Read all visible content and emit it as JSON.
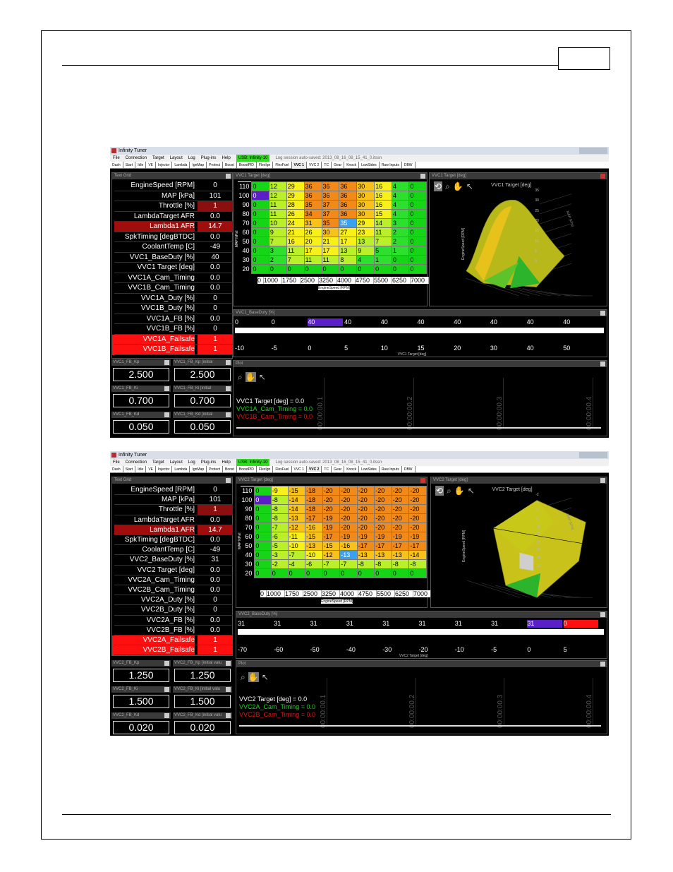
{
  "app_title": "Infinity Tuner",
  "menu": [
    "File",
    "Connection",
    "Target",
    "Layout",
    "Log",
    "Plug-ins",
    "Help"
  ],
  "connection": "USB: Infinity-10",
  "tabs": [
    "Dash",
    "Start",
    "Idle",
    "VE",
    "Injector",
    "Lambda",
    "IgnMap",
    "Protect",
    "Boost",
    "BoostPID",
    "FlexIgn",
    "FlexFuel",
    "VVC 1",
    "VVC 2",
    "TC",
    "Gear",
    "Knock",
    "LowSides",
    "Raw Inputs",
    "DBW"
  ],
  "shots": [
    {
      "log_msg": "Log session auto-saved: 2013_08_16_08_15_41_0.itssn",
      "active_tab": "VVC 1",
      "text_grid": {
        "title": "Text Grid",
        "rows": [
          {
            "label": "EngineSpeed [RPM]",
            "value": "0",
            "style": ""
          },
          {
            "label": "MAP [kPa]",
            "value": "101",
            "style": ""
          },
          {
            "label": "Throttle [%]",
            "value": "1",
            "style": "red"
          },
          {
            "label": "LambdaTarget AFR",
            "value": "0.0",
            "style": ""
          },
          {
            "label": "Lambda1 AFR",
            "value": "14.7",
            "style": "red"
          },
          {
            "label": "SpkTiming [degBTDC]",
            "value": "0.0",
            "style": ""
          },
          {
            "label": "CoolantTemp [C]",
            "value": "-49",
            "style": ""
          },
          {
            "label": "VVC1_BaseDuty [%]",
            "value": "40",
            "style": ""
          },
          {
            "label": "VVC1 Target [deg]",
            "value": "0.0",
            "style": ""
          },
          {
            "label": "VVC1A_Cam_Timing",
            "value": "0.0",
            "style": ""
          },
          {
            "label": "VVC1B_Cam_Timing",
            "value": "0.0",
            "style": ""
          },
          {
            "label": "VVC1A_Duty [%]",
            "value": "0",
            "style": ""
          },
          {
            "label": "VVC1B_Duty [%]",
            "value": "0",
            "style": ""
          },
          {
            "label": "VVC1A_FB [%]",
            "value": "0.0",
            "style": ""
          },
          {
            "label": "VVC1B_FB [%]",
            "value": "0",
            "style": ""
          },
          {
            "label": "VVC1A_Failsafe",
            "value": "1",
            "style": "bright"
          },
          {
            "label": "VVC1B_Failsafe",
            "value": "1",
            "style": "bright"
          }
        ]
      },
      "gains": [
        {
          "title": "VVC1_FB_Kp",
          "value": "2.500"
        },
        {
          "title": "VVC1_FB_Kp [initial",
          "value": "2.500"
        },
        {
          "title": "VVC1_FB_Ki",
          "value": "0.700"
        },
        {
          "title": "VVC1_FB_Ki [initial",
          "value": "0.700"
        },
        {
          "title": "VVC1_FB_Kd",
          "value": "0.050"
        },
        {
          "title": "VVC1_FB_Kd [initial",
          "value": "0.050"
        }
      ],
      "table": {
        "title": "VVC1 Target [deg]",
        "y_label": "MAP [kPa]",
        "x_label": "EngineSpeed [RPM]",
        "rows": [
          "110",
          "100",
          "90",
          "80",
          "70",
          "60",
          "50",
          "40",
          "30",
          "20"
        ],
        "cols": [
          "0",
          "1000",
          "1750",
          "2500",
          "3250",
          "4000",
          "4750",
          "5500",
          "6250",
          "7000"
        ],
        "cells": [
          [
            "0",
            "12",
            "29",
            "36",
            "36",
            "36",
            "30",
            "16",
            "4",
            "0"
          ],
          [
            "0",
            "12",
            "29",
            "36",
            "36",
            "36",
            "30",
            "16",
            "4",
            "0"
          ],
          [
            "0",
            "11",
            "28",
            "35",
            "37",
            "36",
            "30",
            "16",
            "4",
            "0"
          ],
          [
            "0",
            "11",
            "26",
            "34",
            "37",
            "36",
            "30",
            "15",
            "4",
            "0"
          ],
          [
            "0",
            "10",
            "24",
            "31",
            "35",
            "35",
            "29",
            "14",
            "3",
            "0"
          ],
          [
            "0",
            "9",
            "21",
            "26",
            "30",
            "27",
            "23",
            "11",
            "2",
            "0"
          ],
          [
            "0",
            "7",
            "16",
            "20",
            "21",
            "17",
            "13",
            "7",
            "2",
            "0"
          ],
          [
            "0",
            "3",
            "11",
            "17",
            "17",
            "13",
            "9",
            "5",
            "1",
            "0"
          ],
          [
            "0",
            "2",
            "7",
            "11",
            "11",
            "8",
            "4",
            "1",
            "0",
            "0"
          ],
          [
            "0",
            "0",
            "0",
            "0",
            "0",
            "0",
            "0",
            "0",
            "0",
            "0"
          ]
        ]
      },
      "surface": {
        "title": "VVC1 Target [deg]",
        "z_title": "VVC1 Target [deg]",
        "axis_rpm": "EngineSpeed [RPM]",
        "axis_map": "MAP [kPa]",
        "z_ticks": [
          "35",
          "30",
          "25",
          "20",
          "15",
          "10",
          "5",
          "0"
        ]
      },
      "duty": {
        "title": "VVC1_BaseDuty [%]",
        "values": [
          "0",
          "0",
          "40",
          "40",
          "40",
          "40",
          "40",
          "40",
          "40",
          "40"
        ],
        "targets": [
          "-10",
          "-5",
          "0",
          "5",
          "10",
          "15",
          "20",
          "30",
          "40",
          "50"
        ],
        "axis": "VVC1 Target [deg]"
      },
      "plot": {
        "title": "Plot",
        "legend": [
          {
            "text": "VVC1 Target [deg] = 0.0",
            "color": "#ffffff"
          },
          {
            "text": "VVC1A_Cam_Timing = 0.0",
            "color": "#1ad61a"
          },
          {
            "text": "VVC1B_Cam_Timing = 0.0",
            "color": "#e01515"
          }
        ],
        "time_labels": [
          "00:00:00.1",
          "00:00:00.2",
          "00:00:00.3",
          "00:00:00.4"
        ]
      }
    },
    {
      "log_msg": "Log session auto-saved: 2013_08_16_08_15_41_0.itssn",
      "active_tab": "VVC 2",
      "text_grid": {
        "title": "Text Grid",
        "rows": [
          {
            "label": "EngineSpeed [RPM]",
            "value": "0",
            "style": ""
          },
          {
            "label": "MAP [kPa]",
            "value": "101",
            "style": ""
          },
          {
            "label": "Throttle [%]",
            "value": "1",
            "style": "red"
          },
          {
            "label": "LambdaTarget AFR",
            "value": "0.0",
            "style": ""
          },
          {
            "label": "Lambda1 AFR",
            "value": "14.7",
            "style": "red"
          },
          {
            "label": "SpkTiming [degBTDC]",
            "value": "0.0",
            "style": ""
          },
          {
            "label": "CoolantTemp [C]",
            "value": "-49",
            "style": ""
          },
          {
            "label": "VVC2_BaseDuty [%]",
            "value": "31",
            "style": ""
          },
          {
            "label": "VVC2 Target [deg]",
            "value": "0.0",
            "style": ""
          },
          {
            "label": "VVC2A_Cam_Timing",
            "value": "0.0",
            "style": ""
          },
          {
            "label": "VVC2B_Cam_Timing",
            "value": "0.0",
            "style": ""
          },
          {
            "label": "VVC2A_Duty [%]",
            "value": "0",
            "style": ""
          },
          {
            "label": "VVC2B_Duty [%]",
            "value": "0",
            "style": ""
          },
          {
            "label": "VVC2A_FB [%]",
            "value": "0.0",
            "style": ""
          },
          {
            "label": "VVC2B_FB [%]",
            "value": "0.0",
            "style": ""
          },
          {
            "label": "VVC2A_Failsafe",
            "value": "1",
            "style": "bright"
          },
          {
            "label": "VVC2B_Failsafe",
            "value": "1",
            "style": "bright"
          }
        ]
      },
      "gains": [
        {
          "title": "VVC2_FB_Kp",
          "value": "1.250"
        },
        {
          "title": "VVC2_FB_Kp [initial valu",
          "value": "1.250"
        },
        {
          "title": "VVC2_FB_Ki",
          "value": "1.500"
        },
        {
          "title": "VVC2_FB_Ki [initial valu",
          "value": "1.500"
        },
        {
          "title": "VVC2_FB_Kd",
          "value": "0.020"
        },
        {
          "title": "VVC2_FB_Kd [initial valu",
          "value": "0.020"
        }
      ],
      "table": {
        "title": "VVC2 Target [deg]",
        "y_label": "MAP [kPa]",
        "x_label": "EngineSpeed [RPM]",
        "rows": [
          "110",
          "100",
          "90",
          "80",
          "70",
          "60",
          "50",
          "40",
          "30",
          "20"
        ],
        "cols": [
          "0",
          "1000",
          "1750",
          "2500",
          "3250",
          "4000",
          "4750",
          "5500",
          "6250",
          "7000"
        ],
        "cells": [
          [
            "0",
            "-9",
            "-15",
            "-18",
            "-20",
            "-20",
            "-20",
            "-20",
            "-20",
            "-20"
          ],
          [
            "0",
            "-8",
            "-14",
            "-18",
            "-20",
            "-20",
            "-20",
            "-20",
            "-20",
            "-20"
          ],
          [
            "0",
            "-8",
            "-14",
            "-18",
            "-20",
            "-20",
            "-20",
            "-20",
            "-20",
            "-20"
          ],
          [
            "0",
            "-8",
            "-13",
            "-17",
            "-19",
            "-20",
            "-20",
            "-20",
            "-20",
            "-20"
          ],
          [
            "0",
            "-7",
            "-12",
            "-16",
            "-19",
            "-20",
            "-20",
            "-20",
            "-20",
            "-20"
          ],
          [
            "0",
            "-6",
            "-11",
            "-15",
            "-17",
            "-19",
            "-19",
            "-19",
            "-19",
            "-19"
          ],
          [
            "0",
            "-5",
            "-10",
            "-13",
            "-15",
            "-16",
            "-17",
            "-17",
            "-17",
            "-17"
          ],
          [
            "0",
            "-3",
            "-7",
            "-10",
            "-12",
            "-13",
            "-13",
            "-13",
            "-13",
            "-14"
          ],
          [
            "0",
            "-2",
            "-4",
            "-6",
            "-7",
            "-7",
            "-8",
            "-8",
            "-8",
            "-8"
          ],
          [
            "0",
            "0",
            "0",
            "0",
            "0",
            "0",
            "0",
            "0",
            "0",
            "0"
          ]
        ]
      },
      "surface": {
        "title": "VVC2 Target [deg]",
        "z_title": "VVC2 Target [deg]",
        "axis_rpm": "EngineSpeed [RPM]",
        "axis_map": "MAP [kPa]",
        "z_ticks": [
          "-2",
          "-4",
          "-6",
          "-8",
          "-10",
          "-12",
          "-14",
          "-16",
          "-18",
          "-20"
        ]
      },
      "duty": {
        "title": "VVC2_BaseDuty [%]",
        "values": [
          "31",
          "31",
          "31",
          "31",
          "31",
          "31",
          "31",
          "31",
          "31",
          "0"
        ],
        "targets": [
          "-70",
          "-60",
          "-50",
          "-40",
          "-30",
          "-20",
          "-10",
          "-5",
          "0",
          "5"
        ],
        "axis": "VVC2 Target [deg]"
      },
      "plot": {
        "title": "Plot",
        "legend": [
          {
            "text": "VVC2 Target [deg] = 0.0",
            "color": "#ffffff"
          },
          {
            "text": "VVC2A_Cam_Timing = 0.0",
            "color": "#1ad61a"
          },
          {
            "text": "VVC2B_Cam_Timing = 0.0",
            "color": "#e01515"
          }
        ],
        "time_labels": [
          "00:00:00.1",
          "00:00:00.2",
          "00:00:00.3",
          "00:00:00.4"
        ]
      }
    }
  ]
}
